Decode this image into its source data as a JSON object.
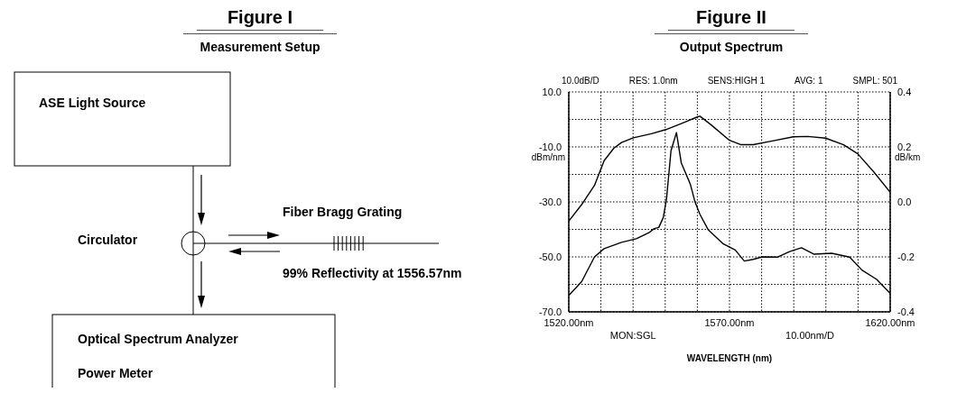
{
  "chart_data": [
    {
      "type": "other",
      "title": "Figure I",
      "subtitle": "Measurement Setup",
      "annotations": [
        "ASE Light Source",
        "Circulator",
        "Fiber Bragg Grating",
        "99% Reflectivity at 1556.57nm",
        "Optical Spectrum Analyzer",
        "Power Meter"
      ]
    },
    {
      "type": "line",
      "title": "Figure II",
      "subtitle": "Output Spectrum",
      "xlabel": "WAVELENGTH (nm)",
      "ylabel": "dBm/nm",
      "y2label": "dB/km",
      "annotations": [
        "10.0dB/D",
        "RES: 1.0nm",
        "SENS:HIGH 1",
        "AVG: 1",
        "SMPL: 501",
        "MON:SGL",
        "10.00nm/D"
      ],
      "series": [
        {
          "color": "#000000",
          "x": [
            1520,
            1524,
            1528,
            1531,
            1534,
            1536.4,
            1540.1,
            1545.7,
            1550.2,
            1555,
            1560,
            1560.8,
            1564.4,
            1570,
            1573.6,
            1577.4,
            1583,
            1589.9,
            1594.3,
            1599.9,
            1605.5,
            1609.9,
            1614.9,
            1620
          ],
          "values": [
            -37,
            -31,
            -24,
            -15,
            -10.5,
            -8.4,
            -6.7,
            -5.2,
            -3.7,
            -1.5,
            0.9,
            1.2,
            -2.1,
            -7.6,
            -9.2,
            -9.2,
            -7.9,
            -6.3,
            -6.2,
            -6.8,
            -9.2,
            -12.5,
            -19.1,
            -26.5
          ]
        },
        {
          "color": "#000000",
          "x": [
            1520,
            1524,
            1528,
            1531,
            1536.4,
            1541,
            1544.8,
            1546.6,
            1548,
            1549.4,
            1550.4,
            1551.8,
            1553.5,
            1555,
            1557.8,
            1559.3,
            1560.8,
            1563.4,
            1568.1,
            1571.8,
            1574.6,
            1577.4,
            1580.2,
            1584.9,
            1588.7,
            1592.4,
            1596.2,
            1601.8,
            1607.4,
            1611.2,
            1615.8,
            1620
          ],
          "values": [
            -64,
            -59,
            -50,
            -47,
            -44.7,
            -43.4,
            -41.3,
            -39.7,
            -39.3,
            -35.7,
            -29,
            -11.4,
            -4.8,
            -15.8,
            -23.5,
            -30.1,
            -34.5,
            -40.2,
            -45.3,
            -47.5,
            -51.5,
            -50.9,
            -50,
            -50.1,
            -48.1,
            -46.7,
            -49,
            -48.7,
            -50.1,
            -54.8,
            -58.2,
            -63.3
          ]
        }
      ],
      "xlim": [
        1520,
        1620
      ],
      "xticks": [
        {
          "value": 1520,
          "label": "1520.00nm"
        },
        {
          "value": 1530,
          "label": null
        },
        {
          "value": 1540,
          "label": null
        },
        {
          "value": 1550,
          "label": null
        },
        {
          "value": 1560,
          "label": null
        },
        {
          "value": 1570,
          "label": "1570.00nm"
        },
        {
          "value": 1580,
          "label": null
        },
        {
          "value": 1590,
          "label": null
        },
        {
          "value": 1600,
          "label": null
        },
        {
          "value": 1610,
          "label": null
        },
        {
          "value": 1620,
          "label": "1620.00nm"
        }
      ],
      "ylim": [
        -70,
        10
      ],
      "yticks": [
        {
          "value": -70,
          "label": "-70.0"
        },
        {
          "value": -60,
          "label": null
        },
        {
          "value": -50,
          "label": "-50.0"
        },
        {
          "value": -40,
          "label": null
        },
        {
          "value": -30,
          "label": "-30.0"
        },
        {
          "value": -20,
          "label": null
        },
        {
          "value": -10,
          "label": "-10.0"
        },
        {
          "value": 0,
          "label": null
        },
        {
          "value": 10,
          "label": "10.0"
        }
      ],
      "y2lim": [
        -0.4,
        0.4
      ],
      "y2ticks": [
        {
          "value": -0.4,
          "label": "-0.4"
        },
        {
          "value": -0.2,
          "label": "-0.2"
        },
        {
          "value": 0,
          "label": "0.0"
        },
        {
          "value": 0.2,
          "label": "0.2"
        },
        {
          "value": 0.4,
          "label": "0.4"
        }
      ],
      "grid": true,
      "marker": "none",
      "line_style": "solid"
    }
  ]
}
